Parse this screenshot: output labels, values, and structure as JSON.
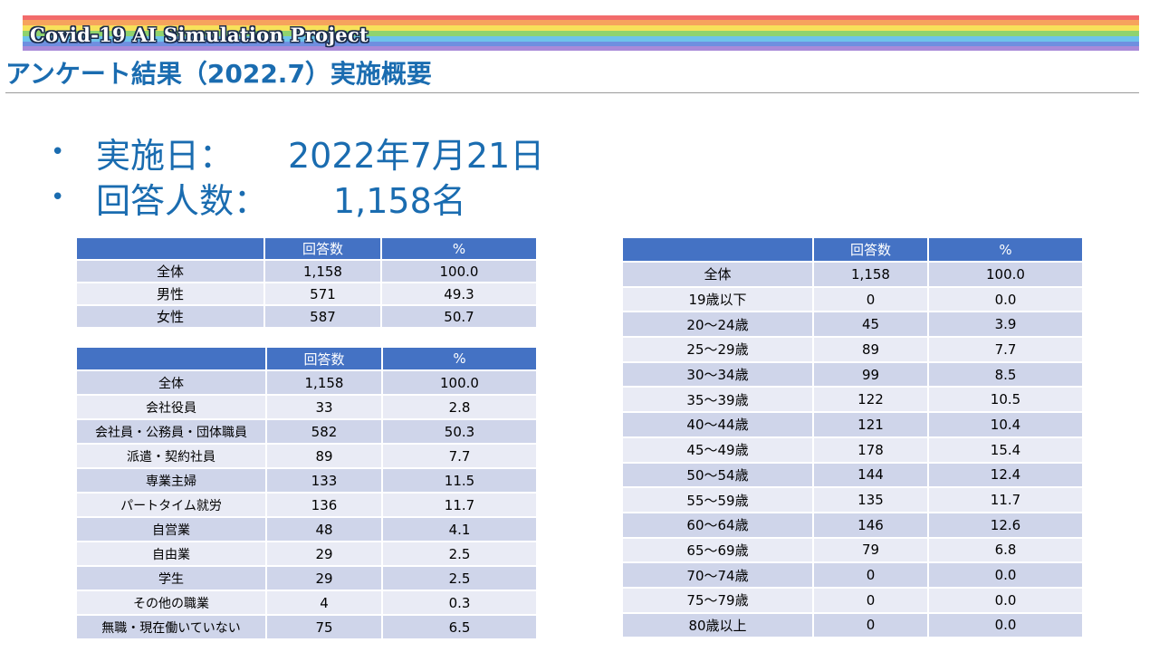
{
  "banner": {
    "text": "Covid-19 AI Simulation Project"
  },
  "page_title": "アンケート結果（2022.7）実施概要",
  "bullets": [
    {
      "label": "実施日：",
      "value": "2022年7月21日"
    },
    {
      "label": "回答人数：",
      "value": "1,158名"
    }
  ],
  "table_gender": {
    "headers": [
      "",
      "回答数",
      "%"
    ],
    "rows": [
      [
        "全体",
        "1,158",
        "100.0"
      ],
      [
        "男性",
        "571",
        "49.3"
      ],
      [
        "女性",
        "587",
        "50.7"
      ]
    ]
  },
  "table_job": {
    "headers": [
      "",
      "回答数",
      "%"
    ],
    "rows": [
      [
        "全体",
        "1,158",
        "100.0"
      ],
      [
        "会社役員",
        "33",
        "2.8"
      ],
      [
        "会社員・公務員・団体職員",
        "582",
        "50.3"
      ],
      [
        "派遣・契約社員",
        "89",
        "7.7"
      ],
      [
        "専業主婦",
        "133",
        "11.5"
      ],
      [
        "パートタイム就労",
        "136",
        "11.7"
      ],
      [
        "自営業",
        "48",
        "4.1"
      ],
      [
        "自由業",
        "29",
        "2.5"
      ],
      [
        "学生",
        "29",
        "2.5"
      ],
      [
        "その他の職業",
        "4",
        "0.3"
      ],
      [
        "無職・現在働いていない",
        "75",
        "6.5"
      ]
    ]
  },
  "table_age": {
    "headers": [
      "",
      "回答数",
      "%"
    ],
    "rows": [
      [
        "全体",
        "1,158",
        "100.0"
      ],
      [
        "19歳以下",
        "0",
        "0.0"
      ],
      [
        "20～24歳",
        "45",
        "3.9"
      ],
      [
        "25～29歳",
        "89",
        "7.7"
      ],
      [
        "30～34歳",
        "99",
        "8.5"
      ],
      [
        "35～39歳",
        "122",
        "10.5"
      ],
      [
        "40～44歳",
        "121",
        "10.4"
      ],
      [
        "45～49歳",
        "178",
        "15.4"
      ],
      [
        "50～54歳",
        "144",
        "12.4"
      ],
      [
        "55～59歳",
        "135",
        "11.7"
      ],
      [
        "60～64歳",
        "146",
        "12.6"
      ],
      [
        "65～69歳",
        "79",
        "6.8"
      ],
      [
        "70～74歳",
        "0",
        "0.0"
      ],
      [
        "75～79歳",
        "0",
        "0.0"
      ],
      [
        "80歳以上",
        "0",
        "0.0"
      ]
    ]
  },
  "colors": {
    "title_blue": "#1a6cb0",
    "header_blue": "#4472c4",
    "row_dark": "#cfd5ea",
    "row_light": "#e9ebf5"
  }
}
